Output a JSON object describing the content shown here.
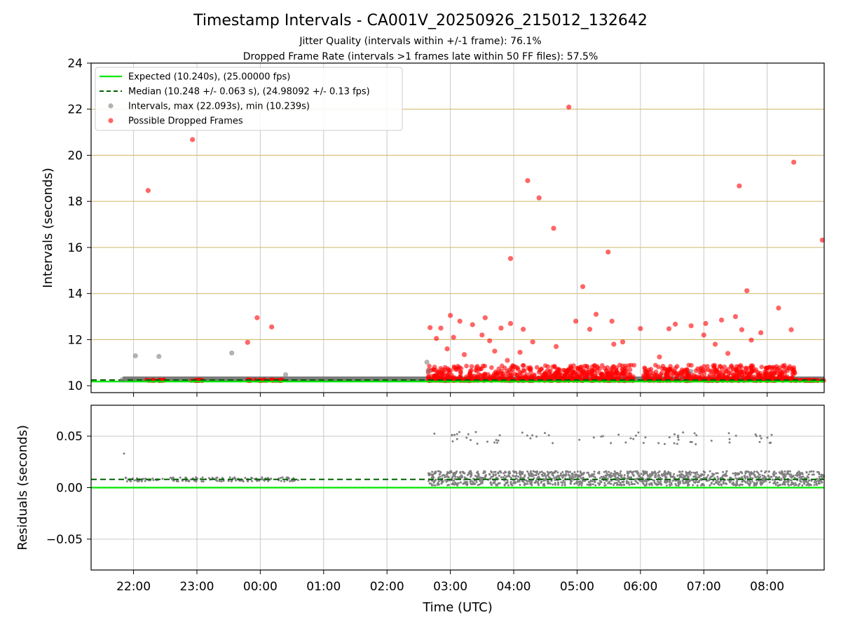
{
  "title": "Timestamp Intervals - CA001V_20250926_215012_132642",
  "subtitle_1": "Jitter Quality (intervals within +/-1 frame): 76.1%",
  "subtitle_2": "Dropped Frame Rate (intervals >1 frames late within 50 FF files): 57.5%",
  "xlabel": "Time (UTC)",
  "colors": {
    "expected": "#00e600",
    "median": "#006400",
    "interval": "#808080",
    "dropped": "#ff0000",
    "band_line": "#d4c07a",
    "grid": "#c8c8c8"
  },
  "chart_data": [
    {
      "type": "scatter",
      "name": "intervals",
      "ylabel": "Intervals (seconds)",
      "xlim_hours": [
        -2.67,
        8.9
      ],
      "ylim": [
        9.7,
        24
      ],
      "yticks": [
        10,
        12,
        14,
        16,
        18,
        20,
        22,
        24
      ],
      "band_lines": [
        12,
        14,
        16,
        18,
        20,
        22
      ],
      "x_ticks": [
        {
          "hour": -2,
          "label": "22:00"
        },
        {
          "hour": -1,
          "label": "23:00"
        },
        {
          "hour": 0,
          "label": "00:00"
        },
        {
          "hour": 1,
          "label": "01:00"
        },
        {
          "hour": 2,
          "label": "02:00"
        },
        {
          "hour": 3,
          "label": "03:00"
        },
        {
          "hour": 4,
          "label": "04:00"
        },
        {
          "hour": 5,
          "label": "05:00"
        },
        {
          "hour": 6,
          "label": "06:00"
        },
        {
          "hour": 7,
          "label": "07:00"
        },
        {
          "hour": 8,
          "label": "08:00"
        }
      ],
      "expected_value": 10.24,
      "median_value": 10.248,
      "legend": [
        {
          "key": "expected",
          "label": "Expected (10.240s), (25.00000 fps)"
        },
        {
          "key": "median",
          "label": "Median (10.248 +/- 0.063 s), (24.98092 +/- 0.13 fps)"
        },
        {
          "key": "interval",
          "label": "Intervals, max (22.093s), min (10.239s)"
        },
        {
          "key": "dropped",
          "label": "Possible Dropped Frames"
        }
      ],
      "interval_outliers": [
        {
          "t": -2.18,
          "v": 10.26
        },
        {
          "t": -1.97,
          "v": 11.3
        },
        {
          "t": -1.6,
          "v": 11.27
        },
        {
          "t": -0.45,
          "v": 11.42
        },
        {
          "t": 0.4,
          "v": 10.48
        },
        {
          "t": 2.63,
          "v": 11.02
        },
        {
          "t": 2.65,
          "v": 10.64
        },
        {
          "t": 6.8,
          "v": 10.62
        }
      ],
      "dropped_points": [
        {
          "t": -1.77,
          "v": 18.47
        },
        {
          "t": -1.07,
          "v": 20.68
        },
        {
          "t": -0.2,
          "v": 11.88
        },
        {
          "t": -0.05,
          "v": 12.95
        },
        {
          "t": 0.18,
          "v": 12.55
        },
        {
          "t": 2.68,
          "v": 12.52
        },
        {
          "t": 2.78,
          "v": 12.05
        },
        {
          "t": 2.85,
          "v": 12.5
        },
        {
          "t": 2.95,
          "v": 11.6
        },
        {
          "t": 3.0,
          "v": 13.05
        },
        {
          "t": 3.05,
          "v": 12.1
        },
        {
          "t": 3.15,
          "v": 12.8
        },
        {
          "t": 3.22,
          "v": 11.35
        },
        {
          "t": 3.35,
          "v": 12.65
        },
        {
          "t": 3.5,
          "v": 12.2
        },
        {
          "t": 3.55,
          "v": 12.95
        },
        {
          "t": 3.62,
          "v": 11.95
        },
        {
          "t": 3.7,
          "v": 11.5
        },
        {
          "t": 3.8,
          "v": 12.5
        },
        {
          "t": 3.9,
          "v": 11.1
        },
        {
          "t": 3.95,
          "v": 12.7
        },
        {
          "t": 3.95,
          "v": 15.52
        },
        {
          "t": 4.1,
          "v": 11.45
        },
        {
          "t": 4.15,
          "v": 12.45
        },
        {
          "t": 4.22,
          "v": 18.9
        },
        {
          "t": 4.3,
          "v": 11.9
        },
        {
          "t": 4.4,
          "v": 18.15
        },
        {
          "t": 4.63,
          "v": 16.83
        },
        {
          "t": 4.67,
          "v": 11.7
        },
        {
          "t": 4.87,
          "v": 22.09
        },
        {
          "t": 4.98,
          "v": 12.8
        },
        {
          "t": 5.09,
          "v": 14.3
        },
        {
          "t": 5.2,
          "v": 12.45
        },
        {
          "t": 5.3,
          "v": 13.1
        },
        {
          "t": 5.49,
          "v": 15.8
        },
        {
          "t": 5.55,
          "v": 12.8
        },
        {
          "t": 5.58,
          "v": 11.8
        },
        {
          "t": 5.72,
          "v": 11.9
        },
        {
          "t": 6.0,
          "v": 12.48
        },
        {
          "t": 6.3,
          "v": 11.25
        },
        {
          "t": 6.45,
          "v": 12.47
        },
        {
          "t": 6.55,
          "v": 12.67
        },
        {
          "t": 6.8,
          "v": 12.6
        },
        {
          "t": 7.0,
          "v": 12.2
        },
        {
          "t": 7.03,
          "v": 12.7
        },
        {
          "t": 7.18,
          "v": 11.8
        },
        {
          "t": 7.28,
          "v": 12.85
        },
        {
          "t": 7.38,
          "v": 11.4
        },
        {
          "t": 7.5,
          "v": 13.0
        },
        {
          "t": 7.56,
          "v": 18.67
        },
        {
          "t": 7.6,
          "v": 12.43
        },
        {
          "t": 7.68,
          "v": 14.12
        },
        {
          "t": 7.75,
          "v": 11.98
        },
        {
          "t": 7.9,
          "v": 12.3
        },
        {
          "t": 8.18,
          "v": 13.37
        },
        {
          "t": 8.38,
          "v": 12.43
        },
        {
          "t": 8.42,
          "v": 19.7
        },
        {
          "t": 8.87,
          "v": 16.32
        }
      ],
      "dropped_clusters": [
        {
          "t0": -1.8,
          "t1": -1.5,
          "lo": 10.22,
          "hi": 10.26
        },
        {
          "t0": -1.1,
          "t1": -0.9,
          "lo": 10.22,
          "hi": 10.26
        },
        {
          "t0": -0.2,
          "t1": 0.1,
          "lo": 10.22,
          "hi": 10.26
        },
        {
          "t0": 0.15,
          "t1": 0.35,
          "lo": 10.22,
          "hi": 10.26
        },
        {
          "t0": 2.65,
          "t1": 5.9,
          "lo": 10.22,
          "hi": 10.9
        },
        {
          "t0": 6.05,
          "t1": 8.45,
          "lo": 10.22,
          "hi": 10.9
        },
        {
          "t0": 8.45,
          "t1": 8.9,
          "lo": 10.22,
          "hi": 10.26
        }
      ]
    },
    {
      "type": "scatter",
      "name": "residuals",
      "ylabel": "Residuals (seconds)",
      "xlim_hours": [
        -2.67,
        8.9
      ],
      "ylim": [
        -0.08,
        0.08
      ],
      "yticks": [
        -0.05,
        0.0,
        0.05
      ],
      "ytick_labels": [
        "−0.05",
        "0.00",
        "0.05"
      ],
      "zero_line": 0.0,
      "median_residual": 0.008,
      "residual_outlier": {
        "t": -2.15,
        "v": 0.033
      },
      "residual_bands": [
        {
          "t0": -2.17,
          "t1": 0.6,
          "lo": 0.006,
          "hi": 0.01,
          "count": 160
        },
        {
          "t0": 2.65,
          "t1": 8.9,
          "lo": 0.002,
          "hi": 0.016,
          "count": 1400
        },
        {
          "t0": 2.65,
          "t1": 8.4,
          "lo": 0.042,
          "hi": 0.054,
          "count": 70
        }
      ]
    }
  ]
}
